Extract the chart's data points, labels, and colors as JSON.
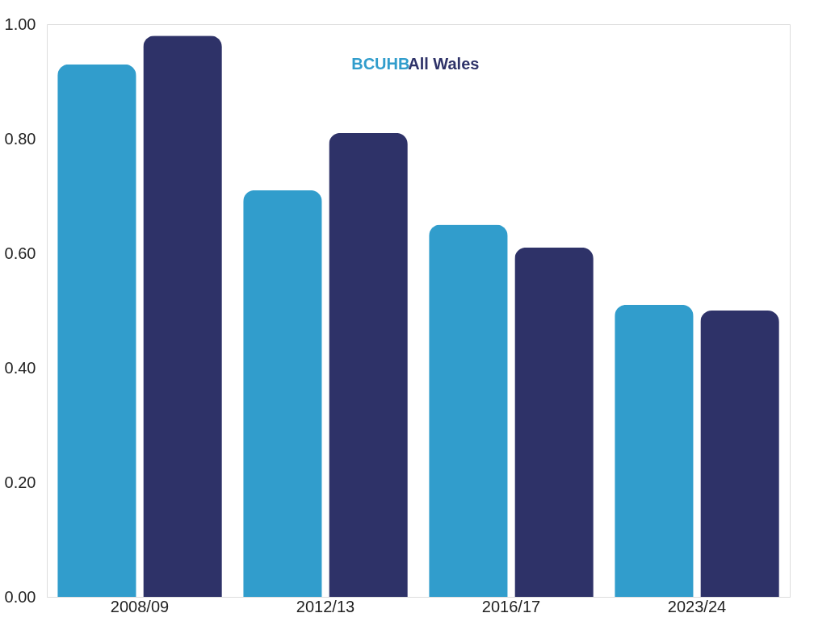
{
  "chart_data": {
    "type": "bar",
    "categories": [
      "2008/09",
      "2012/13",
      "2016/17",
      "2023/24"
    ],
    "series": [
      {
        "name": "BCUHB",
        "color": "#319dcc",
        "values": [
          0.93,
          0.71,
          0.65,
          0.51
        ]
      },
      {
        "name": "All Wales",
        "color": "#2e3268",
        "values": [
          0.98,
          0.81,
          0.61,
          0.5
        ]
      }
    ],
    "ylim": [
      0,
      1
    ],
    "yticks": [
      {
        "value": 0,
        "label": "0.00"
      },
      {
        "value": 0.2,
        "label": "0.20"
      },
      {
        "value": 0.4,
        "label": "0.40"
      },
      {
        "value": 0.6,
        "label": "0.60"
      },
      {
        "value": 0.8,
        "label": "0.80"
      },
      {
        "value": 1,
        "label": "1.00"
      }
    ],
    "grid": false,
    "legend": "top"
  }
}
